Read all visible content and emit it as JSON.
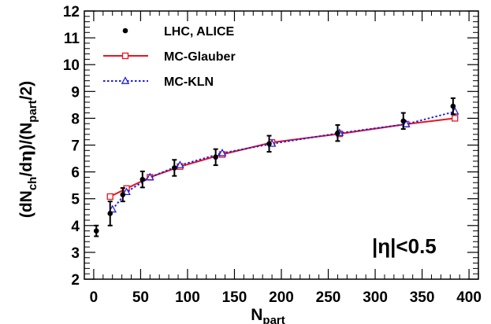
{
  "chart_data": {
    "type": "scatter",
    "xlabel_main": "N",
    "xlabel_sub": "part",
    "ylabel_parts": [
      "(dN",
      "ch",
      "/d",
      "η",
      ")/(N",
      "part",
      "/2)"
    ],
    "xlim": [
      -10,
      410
    ],
    "ylim": [
      2,
      12
    ],
    "x_ticks": [
      0,
      50,
      100,
      150,
      200,
      250,
      300,
      350,
      400
    ],
    "y_ticks": [
      2,
      3,
      4,
      5,
      6,
      7,
      8,
      9,
      10,
      11,
      12
    ],
    "annotation": "|η|<0.5",
    "grid": false,
    "legend_position": "top-left",
    "series": [
      {
        "name": "LHC, ALICE",
        "style": "points-with-errors",
        "color": "#000000",
        "x": [
          2.8,
          17.5,
          31,
          52,
          86,
          130,
          187,
          260,
          330,
          383
        ],
        "y": [
          3.8,
          4.45,
          5.15,
          5.72,
          6.15,
          6.55,
          7.05,
          7.45,
          7.9,
          8.45
        ],
        "yerr": [
          0.2,
          0.45,
          0.25,
          0.3,
          0.3,
          0.3,
          0.3,
          0.3,
          0.3,
          0.3
        ]
      },
      {
        "name": "MC-Glauber",
        "style": "solid-line-open-squares",
        "color": "#e8141e",
        "x": [
          17.5,
          35,
          60,
          92,
          137,
          190,
          262,
          333,
          385
        ],
        "y": [
          5.08,
          5.38,
          5.8,
          6.2,
          6.65,
          7.1,
          7.42,
          7.78,
          8.0
        ]
      },
      {
        "name": "MC-KLN",
        "style": "dotted-line-open-triangles",
        "color": "#1e1ee6",
        "x": [
          20,
          35,
          60,
          92,
          137,
          190,
          262,
          333,
          385
        ],
        "y": [
          4.6,
          5.25,
          5.8,
          6.25,
          6.7,
          7.05,
          7.45,
          7.78,
          8.25
        ]
      }
    ]
  }
}
